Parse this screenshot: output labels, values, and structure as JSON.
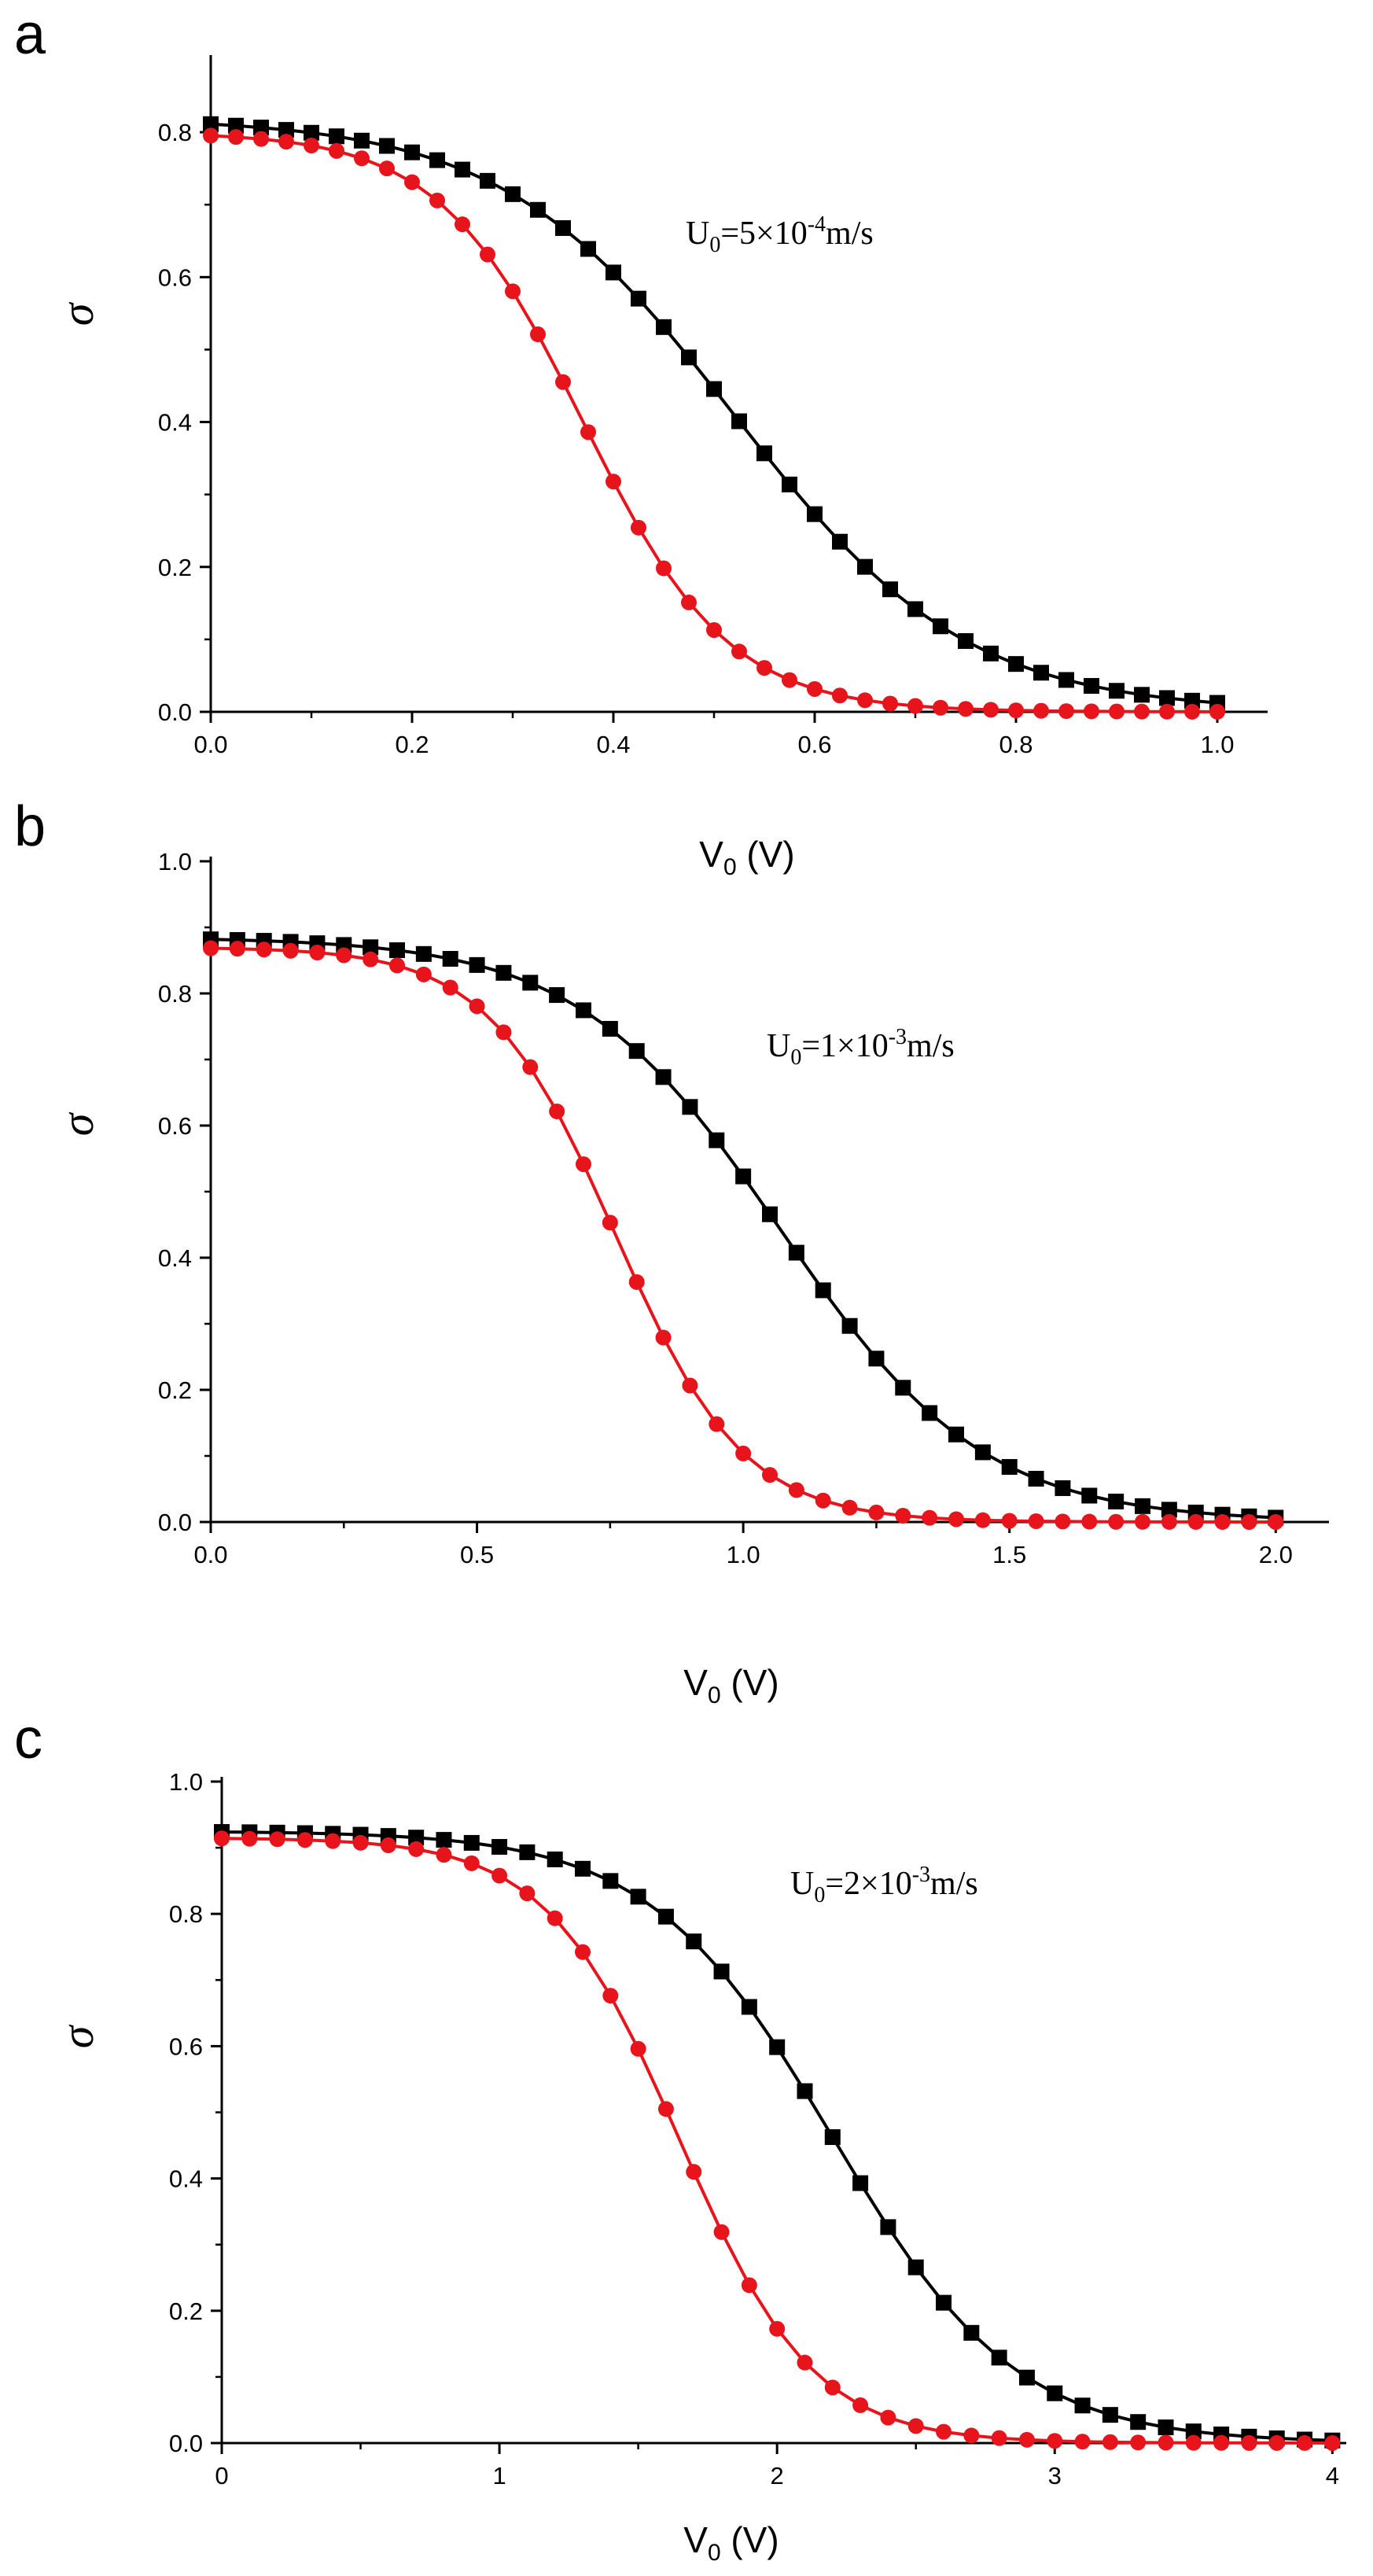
{
  "chart_data": [
    {
      "panel": "a",
      "type": "line",
      "xlabel": "V",
      "xlabel_sub": "0",
      "xlabel_unit": " (V)",
      "ylabel": "σ",
      "xlim": [
        0,
        1.05
      ],
      "ylim": [
        0,
        0.9
      ],
      "xticks": [
        0,
        0.2,
        0.4,
        0.6,
        0.8,
        1.0
      ],
      "xtick_labels": [
        "0.0",
        "0.2",
        "0.4",
        "0.6",
        "0.8",
        "1.0"
      ],
      "yticks": [
        0,
        0.2,
        0.4,
        0.6,
        0.8
      ],
      "ytick_labels": [
        "0.0",
        "0.2",
        "0.4",
        "0.6",
        "0.8"
      ],
      "annotation": {
        "base": "U",
        "sub": "0",
        "mid": "=5×10",
        "sup": "-4",
        "tail": "m/s"
      },
      "series": [
        {
          "name": "black-squares",
          "color": "#000000",
          "marker": "square",
          "model": {
            "a": 0.82,
            "c": 0.52,
            "w": 0.115
          },
          "xmax": 1.0,
          "n": 41
        },
        {
          "name": "red-circles",
          "color": "#e8141c",
          "marker": "circle",
          "model": {
            "a": 0.8,
            "c": 0.37,
            "w": 0.072
          },
          "xmax": 1.0,
          "n": 41
        }
      ]
    },
    {
      "panel": "b",
      "type": "line",
      "xlabel": "V",
      "xlabel_sub": "0",
      "xlabel_unit": " (V)",
      "ylabel": "σ",
      "xlim": [
        0,
        2.1
      ],
      "ylim": [
        0,
        1.0
      ],
      "xticks": [
        0,
        0.5,
        1.0,
        1.5,
        2.0
      ],
      "xtick_labels": [
        "0.0",
        "0.5",
        "1.0",
        "1.5",
        "2.0"
      ],
      "yticks": [
        0,
        0.2,
        0.4,
        0.6,
        0.8,
        1.0
      ],
      "ytick_labels": [
        "0.0",
        "0.2",
        "0.4",
        "0.6",
        "0.8",
        "1.0"
      ],
      "annotation": {
        "base": "U",
        "sub": "0",
        "mid": "=1×10",
        "sup": "-3",
        "tail": "m/s"
      },
      "series": [
        {
          "name": "black-squares",
          "color": "#000000",
          "marker": "square",
          "model": {
            "a": 0.885,
            "c": 1.07,
            "w": 0.19
          },
          "xmax": 2.0,
          "n": 41
        },
        {
          "name": "red-circles",
          "color": "#e8141c",
          "marker": "circle",
          "model": {
            "a": 0.87,
            "c": 0.76,
            "w": 0.12
          },
          "xmax": 2.0,
          "n": 41
        }
      ]
    },
    {
      "panel": "c",
      "type": "line",
      "xlabel": "V",
      "xlabel_sub": "0",
      "xlabel_unit": " (V)",
      "ylabel": "σ",
      "xlim": [
        0,
        4.05
      ],
      "ylim": [
        0,
        1.0
      ],
      "xticks": [
        0,
        1,
        2,
        3,
        4
      ],
      "xtick_labels": [
        "0",
        "1",
        "2",
        "3",
        "4"
      ],
      "yticks": [
        0,
        0.2,
        0.4,
        0.6,
        0.8,
        1.0
      ],
      "ytick_labels": [
        "0.0",
        "0.2",
        "0.4",
        "0.6",
        "0.8",
        "1.0"
      ],
      "annotation": {
        "base": "U",
        "sub": "0",
        "mid": "=2×10",
        "sup": "-3",
        "tail": "m/s"
      },
      "series": [
        {
          "name": "black-squares",
          "color": "#000000",
          "marker": "square",
          "model": {
            "a": 0.925,
            "c": 2.2,
            "w": 0.33
          },
          "xmax": 4.0,
          "n": 41
        },
        {
          "name": "red-circles",
          "color": "#e8141c",
          "marker": "circle",
          "model": {
            "a": 0.915,
            "c": 1.65,
            "w": 0.24
          },
          "xmax": 4.0,
          "n": 41
        }
      ]
    }
  ]
}
